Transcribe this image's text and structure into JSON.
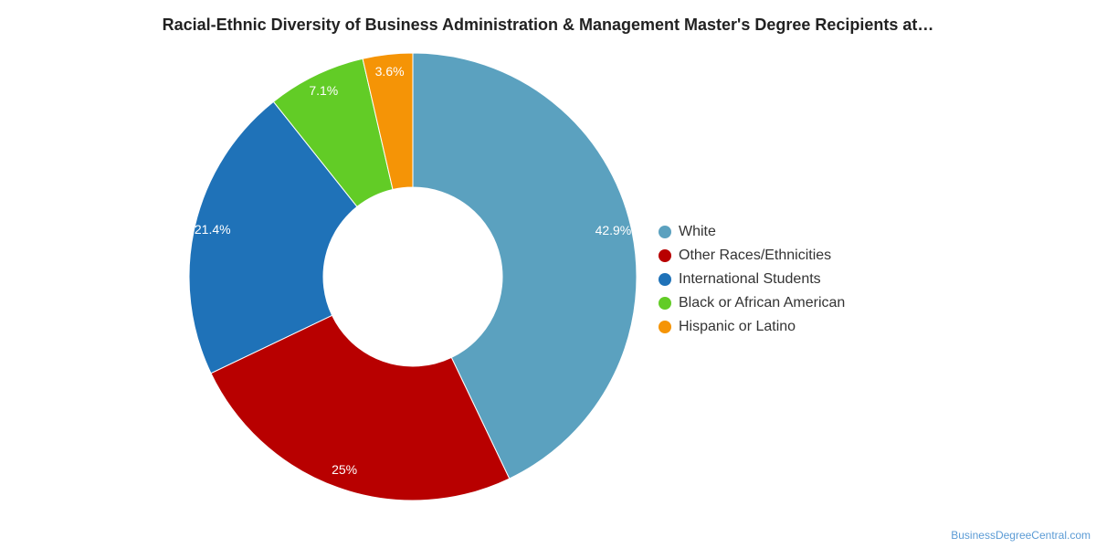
{
  "chart_data": {
    "type": "pie",
    "title": "Racial-Ethnic Diversity of Business Administration & Management Master's Degree Recipients at…",
    "donut": true,
    "legend_position": "right",
    "slices": [
      {
        "name": "White",
        "value": 42.9,
        "label": "42.9%",
        "color": "#5ba1bf"
      },
      {
        "name": "Other Races/Ethnicities",
        "value": 25,
        "label": "25%",
        "color": "#b80000"
      },
      {
        "name": "International Students",
        "value": 21.4,
        "label": "21.4%",
        "color": "#1f72b8"
      },
      {
        "name": "Black or African American",
        "value": 7.1,
        "label": "7.1%",
        "color": "#62cc26"
      },
      {
        "name": "Hispanic or Latino",
        "value": 3.6,
        "label": "3.6%",
        "color": "#f59406"
      }
    ]
  },
  "credit": "BusinessDegreeCentral.com"
}
